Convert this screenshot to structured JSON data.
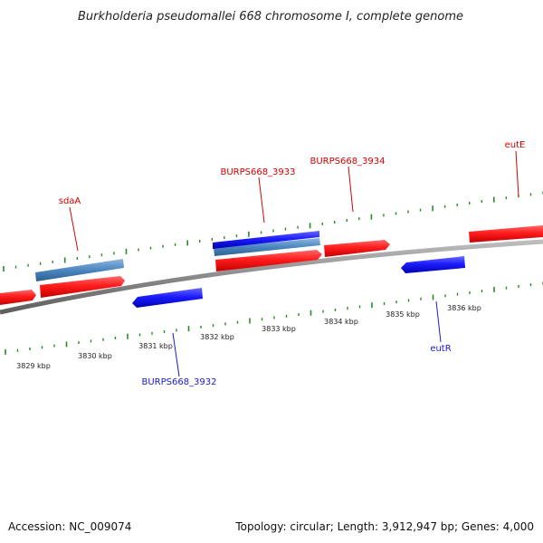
{
  "title": "Burkholderia pseudomallei 668 chromosome I, complete genome",
  "footer": {
    "accession": "Accession: NC_009074",
    "topology": "Topology: circular; Length: 3,912,947 bp; Genes: 4,000"
  },
  "scale": {
    "unit": "kbp",
    "ticks": [
      "3829 kbp",
      "3830 kbp",
      "3831 kbp",
      "3832 kbp",
      "3833 kbp",
      "3834 kbp",
      "3835 kbp",
      "3836 kbp"
    ]
  },
  "features": [
    {
      "label": "sdaA",
      "strand": "forward",
      "color": "#d40000",
      "labeled": true
    },
    {
      "label": "BURPS668_3933",
      "strand": "forward",
      "color": "#d40000",
      "labeled": true
    },
    {
      "label": "BURPS668_3934",
      "strand": "forward",
      "color": "#d40000",
      "labeled": true
    },
    {
      "label": "eutE",
      "strand": "forward",
      "color": "#d40000",
      "labeled": true
    },
    {
      "label": "BURPS668_3932",
      "strand": "reverse",
      "color": "#1a1acc",
      "labeled": true
    },
    {
      "label": "eutR",
      "strand": "reverse",
      "color": "#1a1acc",
      "labeled": true
    }
  ],
  "colors": {
    "forward_gene": "#ff2020",
    "reverse_gene": "#2020ff",
    "forward_label": "#d40000",
    "reverse_label": "#1a1acc",
    "feature_band": "#4a86c0",
    "backbone": "#888888",
    "tick": "#2a8a2a"
  }
}
